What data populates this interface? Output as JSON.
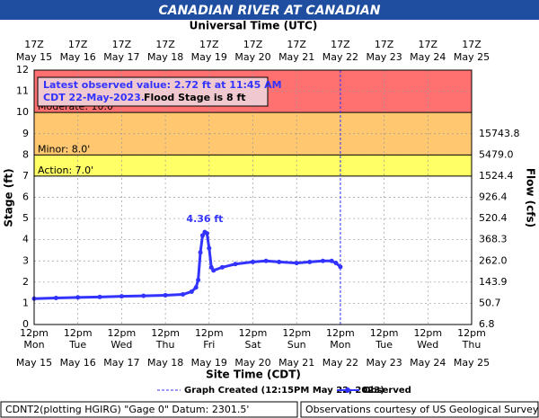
{
  "chart_data": {
    "type": "line",
    "title": "CANADIAN RIVER AT CANADIAN",
    "top_axis_title": "Universal Time (UTC)",
    "x_title": "Site Time (CDT)",
    "y_title": "Stage (ft)",
    "y2_title": "Flow (cfs)",
    "top_ticks": [
      [
        "17Z",
        "May 15"
      ],
      [
        "17Z",
        "May 16"
      ],
      [
        "17Z",
        "May 17"
      ],
      [
        "17Z",
        "May 18"
      ],
      [
        "17Z",
        "May 19"
      ],
      [
        "17Z",
        "May 20"
      ],
      [
        "17Z",
        "May 21"
      ],
      [
        "17Z",
        "May 22"
      ],
      [
        "17Z",
        "May 23"
      ],
      [
        "17Z",
        "May 24"
      ],
      [
        "17Z",
        "May 25"
      ]
    ],
    "bottom_ticks": [
      [
        "12pm",
        "Mon",
        "May 15"
      ],
      [
        "12pm",
        "Tue",
        "May 16"
      ],
      [
        "12pm",
        "Wed",
        "May 17"
      ],
      [
        "12pm",
        "Thu",
        "May 18"
      ],
      [
        "12pm",
        "Fri",
        "May 19"
      ],
      [
        "12pm",
        "Sat",
        "May 20"
      ],
      [
        "12pm",
        "Sun",
        "May 21"
      ],
      [
        "12pm",
        "Mon",
        "May 22"
      ],
      [
        "12pm",
        "Tue",
        "May 23"
      ],
      [
        "12pm",
        "Wed",
        "May 24"
      ],
      [
        "12pm",
        "Thu",
        "May 25"
      ]
    ],
    "ylim": [
      0,
      12
    ],
    "yticks": [
      0,
      1,
      2,
      3,
      4,
      5,
      6,
      7,
      8,
      9,
      10,
      11,
      12
    ],
    "flow_ticks": [
      {
        "stage": 0,
        "flow": 6.8
      },
      {
        "stage": 1,
        "flow": 50.7
      },
      {
        "stage": 2,
        "flow": 143.9
      },
      {
        "stage": 3,
        "flow": 262.0,
        "label": "262.0"
      },
      {
        "stage": 4,
        "flow": 368.3
      },
      {
        "stage": 5,
        "flow": 520.4
      },
      {
        "stage": 6,
        "flow": 926.4
      },
      {
        "stage": 7,
        "flow": 1524.4
      },
      {
        "stage": 8,
        "flow": 5479.0,
        "label": "5479.0"
      },
      {
        "stage": 9,
        "flow": 15743.8
      }
    ],
    "grid": true,
    "flood_levels": [
      {
        "label": "Action: 7.0'",
        "value": 7,
        "color": "#ffff66"
      },
      {
        "label": "Minor: 8.0'",
        "value": 8,
        "color": "#ffc870"
      },
      {
        "label": "Moderate: 10.0'",
        "value": 10,
        "color": "#ff7070"
      }
    ],
    "series": [
      {
        "name": "Observed",
        "color": "#3333ff",
        "x": [
          0,
          0.5,
          1,
          1.5,
          2,
          2.5,
          3,
          3.4,
          3.6,
          3.7,
          3.75,
          3.8,
          3.85,
          3.9,
          3.95,
          4.0,
          4.05,
          4.1,
          4.3,
          4.6,
          5.0,
          5.3,
          5.6,
          6.0,
          6.3,
          6.6,
          6.8,
          6.9,
          7.0
        ],
        "values": [
          1.22,
          1.25,
          1.28,
          1.3,
          1.33,
          1.35,
          1.38,
          1.42,
          1.55,
          1.75,
          2.1,
          3.4,
          4.2,
          4.36,
          4.3,
          3.6,
          2.7,
          2.55,
          2.7,
          2.85,
          2.95,
          3.0,
          2.95,
          2.9,
          2.95,
          3.0,
          3.0,
          2.9,
          2.72
        ]
      }
    ],
    "peak_label": "4.36 ft",
    "graph_created": {
      "label": "Graph Created (12:15PM May 22, 2023)",
      "x": 7
    },
    "annotation": {
      "line1": "Latest observed value: 2.72 ft at 11:45 AM",
      "line2": "CDT 22-May-2023.",
      "line3": "Flood Stage is 8 ft"
    },
    "footer_left": "CDNT2(plotting HGIRG) \"Gage 0\" Datum: 2301.5'",
    "footer_right": "Observations courtesy of US Geological Survey"
  }
}
